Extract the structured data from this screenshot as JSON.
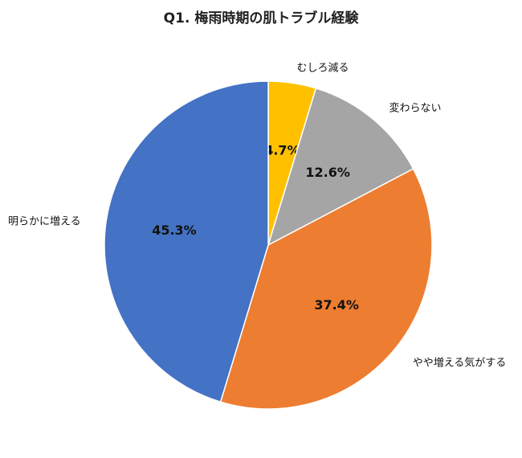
{
  "chart_data": {
    "type": "pie",
    "title": "Q1. 梅雨時期の肌トラブル経験",
    "categories": [
      "むしろ減る",
      "変わらない",
      "やや増える気がする",
      "明らかに増える"
    ],
    "values": [
      4.7,
      12.6,
      37.4,
      45.3
    ],
    "value_labels": [
      "4.7%",
      "12.6%",
      "37.4%",
      "45.3%"
    ],
    "colors": [
      "#FFC000",
      "#A5A5A5",
      "#ED7D31",
      "#4472C4"
    ],
    "start_angle_deg": 0,
    "direction": "clockwise",
    "legend": "none",
    "data_labels": "inside",
    "category_labels": "outside"
  }
}
